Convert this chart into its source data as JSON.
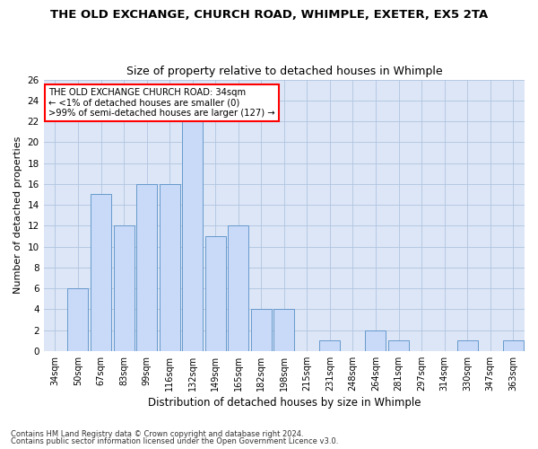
{
  "title1": "THE OLD EXCHANGE, CHURCH ROAD, WHIMPLE, EXETER, EX5 2TA",
  "title2": "Size of property relative to detached houses in Whimple",
  "xlabel": "Distribution of detached houses by size in Whimple",
  "ylabel": "Number of detached properties",
  "categories": [
    "34sqm",
    "50sqm",
    "67sqm",
    "83sqm",
    "99sqm",
    "116sqm",
    "132sqm",
    "149sqm",
    "165sqm",
    "182sqm",
    "198sqm",
    "215sqm",
    "231sqm",
    "248sqm",
    "264sqm",
    "281sqm",
    "297sqm",
    "314sqm",
    "330sqm",
    "347sqm",
    "363sqm"
  ],
  "values": [
    0,
    6,
    15,
    12,
    16,
    16,
    22,
    11,
    12,
    4,
    4,
    0,
    1,
    0,
    2,
    1,
    0,
    0,
    1,
    0,
    1
  ],
  "bar_color": "#c9daf8",
  "bar_edge_color": "#6699cc",
  "annotation_line1": "THE OLD EXCHANGE CHURCH ROAD: 34sqm",
  "annotation_line2": "← <1% of detached houses are smaller (0)",
  "annotation_line3": ">99% of semi-detached houses are larger (127) →",
  "annotation_box_color": "white",
  "annotation_box_edge": "red",
  "ylim": [
    0,
    26
  ],
  "yticks": [
    0,
    2,
    4,
    6,
    8,
    10,
    12,
    14,
    16,
    18,
    20,
    22,
    24,
    26
  ],
  "grid_color": "#b0c4de",
  "footer1": "Contains HM Land Registry data © Crown copyright and database right 2024.",
  "footer2": "Contains public sector information licensed under the Open Government Licence v3.0.",
  "background_color": "#dce6f7"
}
